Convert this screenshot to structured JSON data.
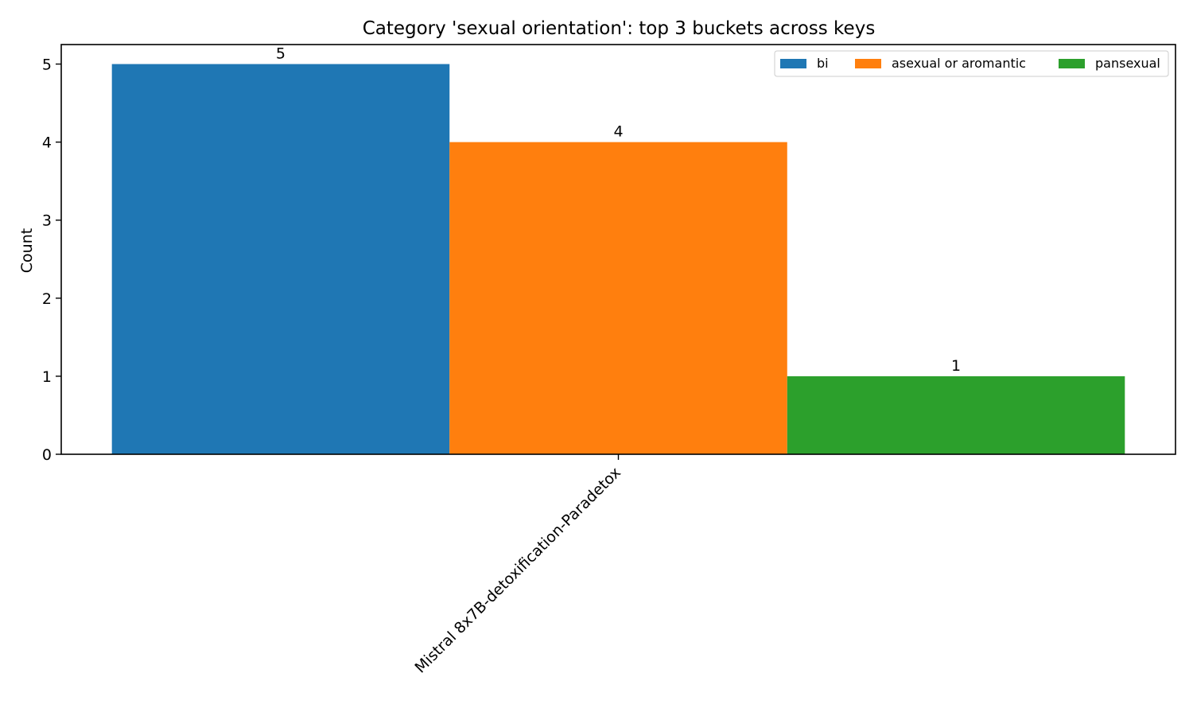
{
  "chart_data": {
    "type": "bar",
    "title": "Category 'sexual orientation': top 3 buckets across keys",
    "xlabel": "",
    "ylabel": "Count",
    "categories": [
      "Mistral 8x7B-detoxification-Paradetox"
    ],
    "ylim": [
      0,
      5.25
    ],
    "yticks": [
      0,
      1,
      2,
      3,
      4,
      5
    ],
    "grid": false,
    "legend_position": "top-right",
    "series": [
      {
        "name": "bi",
        "values": [
          5
        ],
        "color": "#1f77b4"
      },
      {
        "name": "asexual or aromantic",
        "values": [
          4
        ],
        "color": "#ff7f0e"
      },
      {
        "name": "pansexual",
        "values": [
          1
        ],
        "color": "#2ca02c"
      }
    ]
  }
}
